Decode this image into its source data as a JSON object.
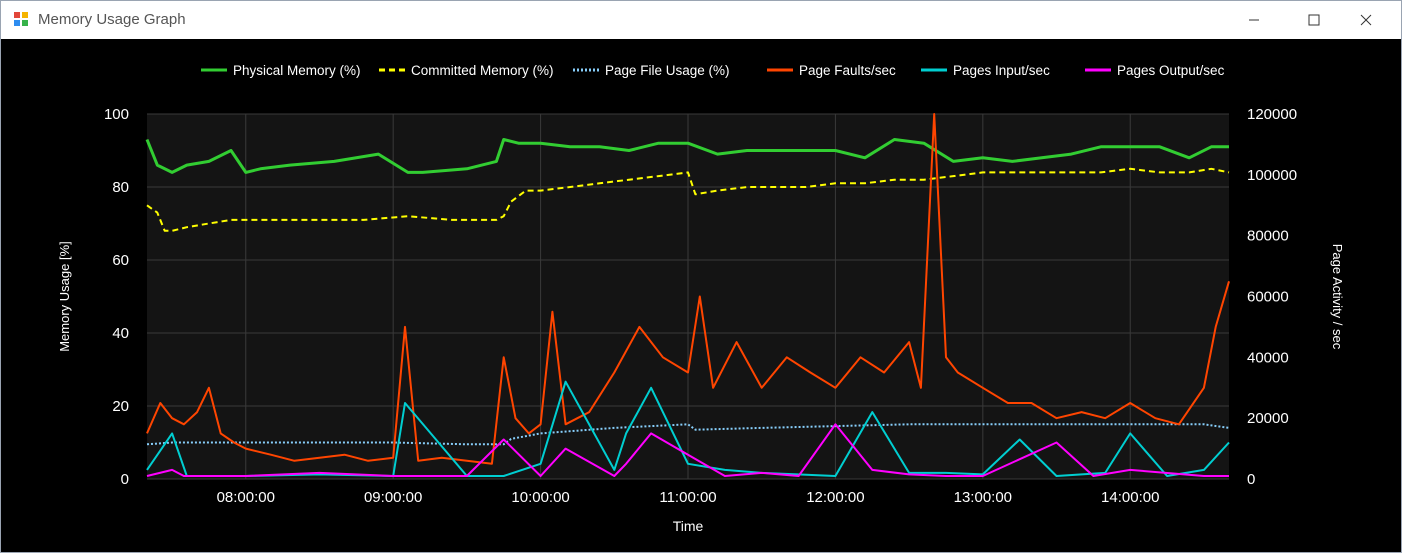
{
  "window": {
    "title": "Memory Usage Graph",
    "controls": [
      "minimize-icon",
      "maximize-icon",
      "close-icon"
    ]
  },
  "chart_data": {
    "type": "line",
    "title": "",
    "xlabel": "Time",
    "ylabel_left": "Memory Usage [%]",
    "ylabel_right": "Page Activity / sec",
    "x_ticks": [
      "08:00:00",
      "09:00:00",
      "10:00:00",
      "11:00:00",
      "12:00:00",
      "13:00:00",
      "14:00:00"
    ],
    "x_range_hours": [
      7.33,
      14.67
    ],
    "y_left_ticks": [
      "0",
      "20",
      "40",
      "60",
      "80",
      "100"
    ],
    "ylim_left": [
      0,
      100
    ],
    "y_right_ticks": [
      "0",
      "20000",
      "40000",
      "60000",
      "80000",
      "100000",
      "120000"
    ],
    "ylim_right": [
      0,
      120000
    ],
    "grid": true,
    "legend_placement": "top",
    "background": "#000000",
    "plot_background": "#141414",
    "series": [
      {
        "name": "Physical Memory (%)",
        "axis": "left",
        "color": "#32cd32",
        "style": "solid",
        "x": [
          7.33,
          7.4,
          7.5,
          7.6,
          7.75,
          7.9,
          8.0,
          8.1,
          8.3,
          8.6,
          8.9,
          9.1,
          9.2,
          9.5,
          9.7,
          9.75,
          9.85,
          10.0,
          10.2,
          10.4,
          10.6,
          10.8,
          11.0,
          11.2,
          11.4,
          11.6,
          11.8,
          12.0,
          12.2,
          12.4,
          12.6,
          12.8,
          13.0,
          13.2,
          13.4,
          13.6,
          13.8,
          14.0,
          14.2,
          14.4,
          14.55,
          14.67
        ],
        "values": [
          93,
          86,
          84,
          86,
          87,
          90,
          84,
          85,
          86,
          87,
          89,
          84,
          84,
          85,
          87,
          93,
          92,
          92,
          91,
          91,
          90,
          92,
          92,
          89,
          90,
          90,
          90,
          90,
          88,
          93,
          92,
          87,
          88,
          87,
          88,
          89,
          91,
          91,
          91,
          88,
          91,
          91
        ]
      },
      {
        "name": "Committed Memory (%)",
        "axis": "left",
        "color": "#ffff00",
        "style": "dashed",
        "x": [
          7.33,
          7.4,
          7.45,
          7.5,
          7.6,
          7.75,
          7.9,
          8.0,
          8.2,
          8.5,
          8.8,
          9.1,
          9.4,
          9.7,
          9.75,
          9.8,
          9.9,
          10.0,
          10.2,
          10.4,
          10.6,
          10.8,
          11.0,
          11.05,
          11.2,
          11.4,
          11.6,
          11.8,
          12.0,
          12.2,
          12.4,
          12.6,
          12.8,
          13.0,
          13.2,
          13.4,
          13.6,
          13.8,
          14.0,
          14.2,
          14.4,
          14.55,
          14.67
        ],
        "values": [
          75,
          73,
          68,
          68,
          69,
          70,
          71,
          71,
          71,
          71,
          71,
          72,
          71,
          71,
          72,
          76,
          79,
          79,
          80,
          81,
          82,
          83,
          84,
          78,
          79,
          80,
          80,
          80,
          81,
          81,
          82,
          82,
          83,
          84,
          84,
          84,
          84,
          84,
          85,
          84,
          84,
          85,
          84
        ]
      },
      {
        "name": "Page File Usage (%)",
        "axis": "left",
        "color": "#87cefa",
        "style": "dotted",
        "x": [
          7.33,
          7.5,
          8.0,
          8.5,
          9.0,
          9.5,
          9.75,
          9.8,
          10.0,
          10.5,
          11.0,
          11.05,
          11.5,
          12.0,
          12.5,
          13.0,
          13.5,
          14.0,
          14.5,
          14.67
        ],
        "values": [
          9.5,
          10,
          10,
          10,
          10,
          9.5,
          9.5,
          11,
          12.5,
          14,
          15,
          13.5,
          14,
          14.5,
          15,
          15,
          15,
          15,
          15,
          14
        ]
      },
      {
        "name": "Page Faults/sec",
        "axis": "right",
        "color": "#ff4500",
        "style": "solid",
        "x": [
          7.33,
          7.42,
          7.5,
          7.58,
          7.67,
          7.75,
          7.83,
          7.92,
          8.0,
          8.17,
          8.33,
          8.5,
          8.67,
          8.83,
          9.0,
          9.08,
          9.17,
          9.33,
          9.5,
          9.67,
          9.75,
          9.83,
          9.92,
          10.0,
          10.08,
          10.17,
          10.25,
          10.33,
          10.5,
          10.67,
          10.83,
          11.0,
          11.08,
          11.17,
          11.33,
          11.5,
          11.67,
          11.83,
          12.0,
          12.17,
          12.33,
          12.5,
          12.58,
          12.67,
          12.75,
          12.83,
          13.0,
          13.17,
          13.33,
          13.5,
          13.67,
          13.83,
          14.0,
          14.17,
          14.33,
          14.5,
          14.58,
          14.67
        ],
        "values": [
          15000,
          25000,
          20000,
          18000,
          22000,
          30000,
          15000,
          12000,
          10000,
          8000,
          6000,
          7000,
          8000,
          6000,
          7000,
          50000,
          6000,
          7000,
          6000,
          5000,
          40000,
          20000,
          15000,
          18000,
          55000,
          18000,
          20000,
          22000,
          35000,
          50000,
          40000,
          35000,
          60000,
          30000,
          45000,
          30000,
          40000,
          35000,
          30000,
          40000,
          35000,
          45000,
          30000,
          120000,
          40000,
          35000,
          30000,
          25000,
          25000,
          20000,
          22000,
          20000,
          25000,
          20000,
          18000,
          30000,
          50000,
          65000
        ]
      },
      {
        "name": "Pages Input/sec",
        "axis": "right",
        "color": "#00ced1",
        "style": "solid",
        "x": [
          7.33,
          7.5,
          7.6,
          8.0,
          8.5,
          9.0,
          9.08,
          9.5,
          9.75,
          10.0,
          10.17,
          10.5,
          10.58,
          10.75,
          11.0,
          11.25,
          11.5,
          12.0,
          12.25,
          12.5,
          12.75,
          13.0,
          13.25,
          13.5,
          13.83,
          14.0,
          14.25,
          14.5,
          14.67
        ],
        "values": [
          3000,
          15000,
          1000,
          1000,
          1500,
          1000,
          25000,
          1000,
          1000,
          5000,
          32000,
          3000,
          15000,
          30000,
          5000,
          3000,
          2000,
          1000,
          22000,
          2000,
          2000,
          1500,
          13000,
          1000,
          2000,
          15000,
          1000,
          3000,
          12000
        ]
      },
      {
        "name": "Pages Output/sec",
        "axis": "right",
        "color": "#ff00ff",
        "style": "solid",
        "x": [
          7.33,
          7.5,
          7.58,
          8.0,
          8.5,
          9.0,
          9.5,
          9.75,
          10.0,
          10.17,
          10.5,
          10.58,
          10.75,
          11.0,
          11.25,
          11.5,
          11.75,
          12.0,
          12.25,
          12.5,
          12.75,
          13.0,
          13.5,
          13.75,
          14.0,
          14.5,
          14.67
        ],
        "values": [
          1000,
          3000,
          1000,
          1000,
          2000,
          1000,
          1000,
          13000,
          1000,
          10000,
          1000,
          5000,
          15000,
          8000,
          1000,
          2000,
          1000,
          18000,
          3000,
          1500,
          1000,
          1000,
          12000,
          1000,
          3000,
          1000,
          1000
        ]
      }
    ]
  }
}
